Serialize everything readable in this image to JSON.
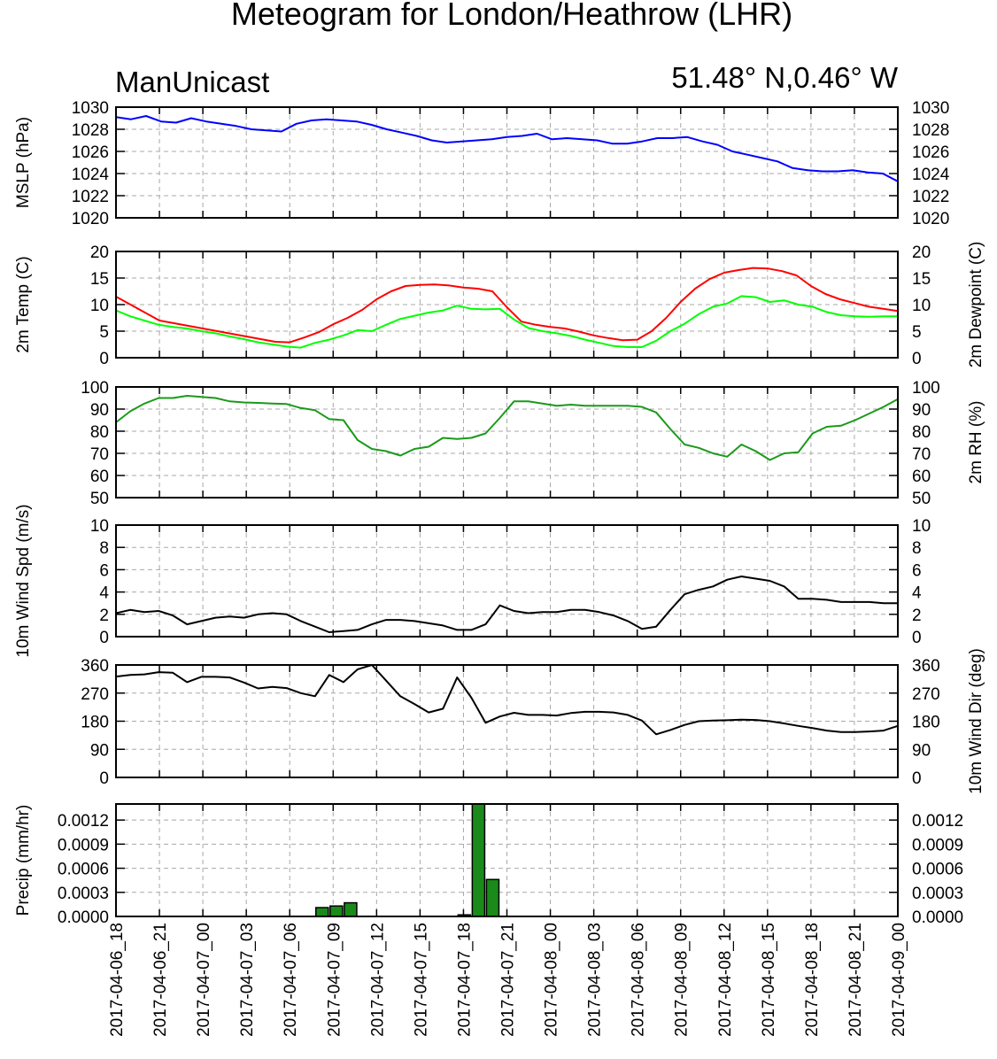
{
  "title": "Meteogram for London/Heathrow (LHR)",
  "model": "ManUnicast",
  "location": "51.48° N,0.46° W",
  "time_labels": [
    "2017-04-06_18",
    "2017-04-06_21",
    "2017-04-07_00",
    "2017-04-07_03",
    "2017-04-07_06",
    "2017-04-07_09",
    "2017-04-07_12",
    "2017-04-07_15",
    "2017-04-07_18",
    "2017-04-07_21",
    "2017-04-08_00",
    "2017-04-08_03",
    "2017-04-08_06",
    "2017-04-08_09",
    "2017-04-08_12",
    "2017-04-08_15",
    "2017-04-08_18",
    "2017-04-08_21",
    "2017-04-09_00"
  ],
  "chart_data": [
    {
      "type": "line",
      "ylabel": "MSLP (hPa)",
      "ylim": [
        1020,
        1030
      ],
      "yticks": [
        "1020",
        "1022",
        "1024",
        "1026",
        "1028",
        "1030"
      ],
      "grid": true,
      "series": [
        {
          "color": "#0000ff",
          "values": [
            1029.1,
            1028.9,
            1029.2,
            1028.7,
            1028.6,
            1029.0,
            1028.7,
            1028.5,
            1028.3,
            1028.0,
            1027.9,
            1027.8,
            1028.5,
            1028.8,
            1028.9,
            1028.8,
            1028.7,
            1028.4,
            1028.0,
            1027.7,
            1027.4,
            1027.0,
            1026.8,
            1026.9,
            1027.0,
            1027.1,
            1027.3,
            1027.4,
            1027.6,
            1027.1,
            1027.2,
            1027.1,
            1027.0,
            1026.7,
            1026.7,
            1026.9,
            1027.2,
            1027.2,
            1027.3,
            1026.9,
            1026.6,
            1026.0,
            1025.7,
            1025.4,
            1025.1,
            1024.5,
            1024.3,
            1024.2,
            1024.2,
            1024.3,
            1024.1,
            1024.0,
            1023.3
          ]
        }
      ]
    },
    {
      "type": "line",
      "ylabel": "2m Temp (C)",
      "ylabel_right": "2m Dewpoint (C)",
      "ylim": [
        0,
        20
      ],
      "yticks": [
        "0",
        "5",
        "10",
        "15",
        "20"
      ],
      "grid": true,
      "series": [
        {
          "color": "#ff0000",
          "values": [
            11.5,
            10.0,
            8.5,
            7.0,
            6.5,
            6.0,
            5.5,
            5.0,
            4.5,
            4.0,
            3.5,
            3.0,
            2.9,
            3.8,
            4.8,
            6.3,
            7.5,
            9.0,
            11.0,
            12.5,
            13.5,
            13.7,
            13.8,
            13.6,
            13.2,
            13.0,
            12.5,
            9.5,
            6.8,
            6.2,
            5.8,
            5.5,
            4.9,
            4.2,
            3.7,
            3.3,
            3.4,
            5.0,
            7.5,
            10.5,
            13.0,
            14.8,
            16.0,
            16.5,
            16.9,
            16.8,
            16.3,
            15.5,
            13.5,
            12.0,
            11.0,
            10.3,
            9.6,
            9.2,
            8.8
          ]
        },
        {
          "color": "#00ff00",
          "values": [
            8.9,
            7.8,
            7.0,
            6.2,
            5.8,
            5.5,
            5.0,
            4.6,
            4.0,
            3.5,
            2.9,
            2.5,
            2.1,
            1.9,
            2.8,
            3.4,
            4.2,
            5.2,
            5.0,
            6.2,
            7.3,
            7.9,
            8.5,
            8.9,
            9.8,
            9.2,
            9.1,
            9.2,
            7.2,
            5.6,
            5.0,
            4.6,
            4.1,
            3.4,
            2.8,
            2.2,
            2.0,
            2.0,
            3.2,
            5.0,
            6.4,
            8.2,
            9.6,
            10.2,
            11.6,
            11.4,
            10.5,
            10.8,
            10.0,
            9.6,
            8.6,
            8.0,
            7.8,
            7.7,
            7.8,
            7.8
          ]
        }
      ]
    },
    {
      "type": "line",
      "ylabel_right": "2m RH (%)",
      "ylim": [
        50,
        100
      ],
      "yticks": [
        "50",
        "60",
        "70",
        "80",
        "90",
        "100"
      ],
      "grid": true,
      "series": [
        {
          "color": "#1a9a1a",
          "values": [
            84,
            89,
            92.5,
            95,
            95,
            96,
            95.5,
            95,
            93.5,
            93,
            92.8,
            92.5,
            92.3,
            90.5,
            89.5,
            85.5,
            85,
            76,
            72,
            71,
            69,
            72,
            73,
            77,
            76.5,
            77,
            79,
            86,
            93.5,
            93.5,
            92.5,
            91.5,
            92,
            91.5,
            91.5,
            91.5,
            91.5,
            91,
            88.5,
            81,
            74,
            72.5,
            70,
            68.5,
            74,
            71,
            67,
            70,
            70.5,
            79,
            82,
            82.5,
            85,
            88,
            91,
            94.5
          ]
        }
      ]
    },
    {
      "type": "line",
      "ylabel": "10m Wind Spd (m/s)",
      "ylim": [
        0,
        10
      ],
      "yticks": [
        "0",
        "2",
        "4",
        "6",
        "8",
        "10"
      ],
      "grid": true,
      "series": [
        {
          "color": "#000000",
          "values": [
            2.1,
            2.4,
            2.2,
            2.3,
            1.9,
            1.1,
            1.4,
            1.7,
            1.8,
            1.7,
            2.0,
            2.1,
            2.0,
            1.4,
            0.9,
            0.4,
            0.5,
            0.6,
            1.1,
            1.5,
            1.5,
            1.4,
            1.2,
            1.0,
            0.6,
            0.6,
            1.1,
            2.8,
            2.3,
            2.1,
            2.2,
            2.2,
            2.4,
            2.4,
            2.2,
            1.9,
            1.4,
            0.7,
            0.9,
            2.4,
            3.8,
            4.2,
            4.5,
            5.1,
            5.4,
            5.2,
            5.0,
            4.5,
            3.4,
            3.4,
            3.3,
            3.1,
            3.1,
            3.1,
            3.0,
            3.0
          ]
        }
      ]
    },
    {
      "type": "line",
      "ylabel_right": "10m Wind Dir (deg)",
      "ylim": [
        0,
        360
      ],
      "yticks": [
        "0",
        "90",
        "180",
        "270",
        "360"
      ],
      "grid": true,
      "series": [
        {
          "color": "#000000",
          "values": [
            323,
            328,
            330,
            337,
            335,
            305,
            322,
            322,
            320,
            304,
            285,
            290,
            286,
            270,
            260,
            328,
            305,
            346,
            360,
            310,
            260,
            235,
            208,
            220,
            320,
            255,
            175,
            195,
            207,
            200,
            200,
            198,
            206,
            210,
            210,
            208,
            200,
            182,
            138,
            152,
            168,
            180,
            182,
            183,
            185,
            184,
            180,
            173,
            165,
            158,
            150,
            145,
            145,
            147,
            150,
            165
          ]
        }
      ]
    },
    {
      "type": "bar",
      "ylabel": "Precip (mm/hr)",
      "ylim": [
        0,
        0.0014
      ],
      "yticks": [
        "0.0000",
        "0.0003",
        "0.0006",
        "0.0009",
        "0.0012"
      ],
      "grid": true,
      "color": "#1a8a1a",
      "bars": [
        {
          "index": 14,
          "value": 0.00011
        },
        {
          "index": 15,
          "value": 0.00013
        },
        {
          "index": 16,
          "value": 0.00017
        },
        {
          "index": 24,
          "value": 2e-05
        },
        {
          "index": 25,
          "value": 0.0014
        },
        {
          "index": 26,
          "value": 0.00046
        }
      ]
    }
  ]
}
